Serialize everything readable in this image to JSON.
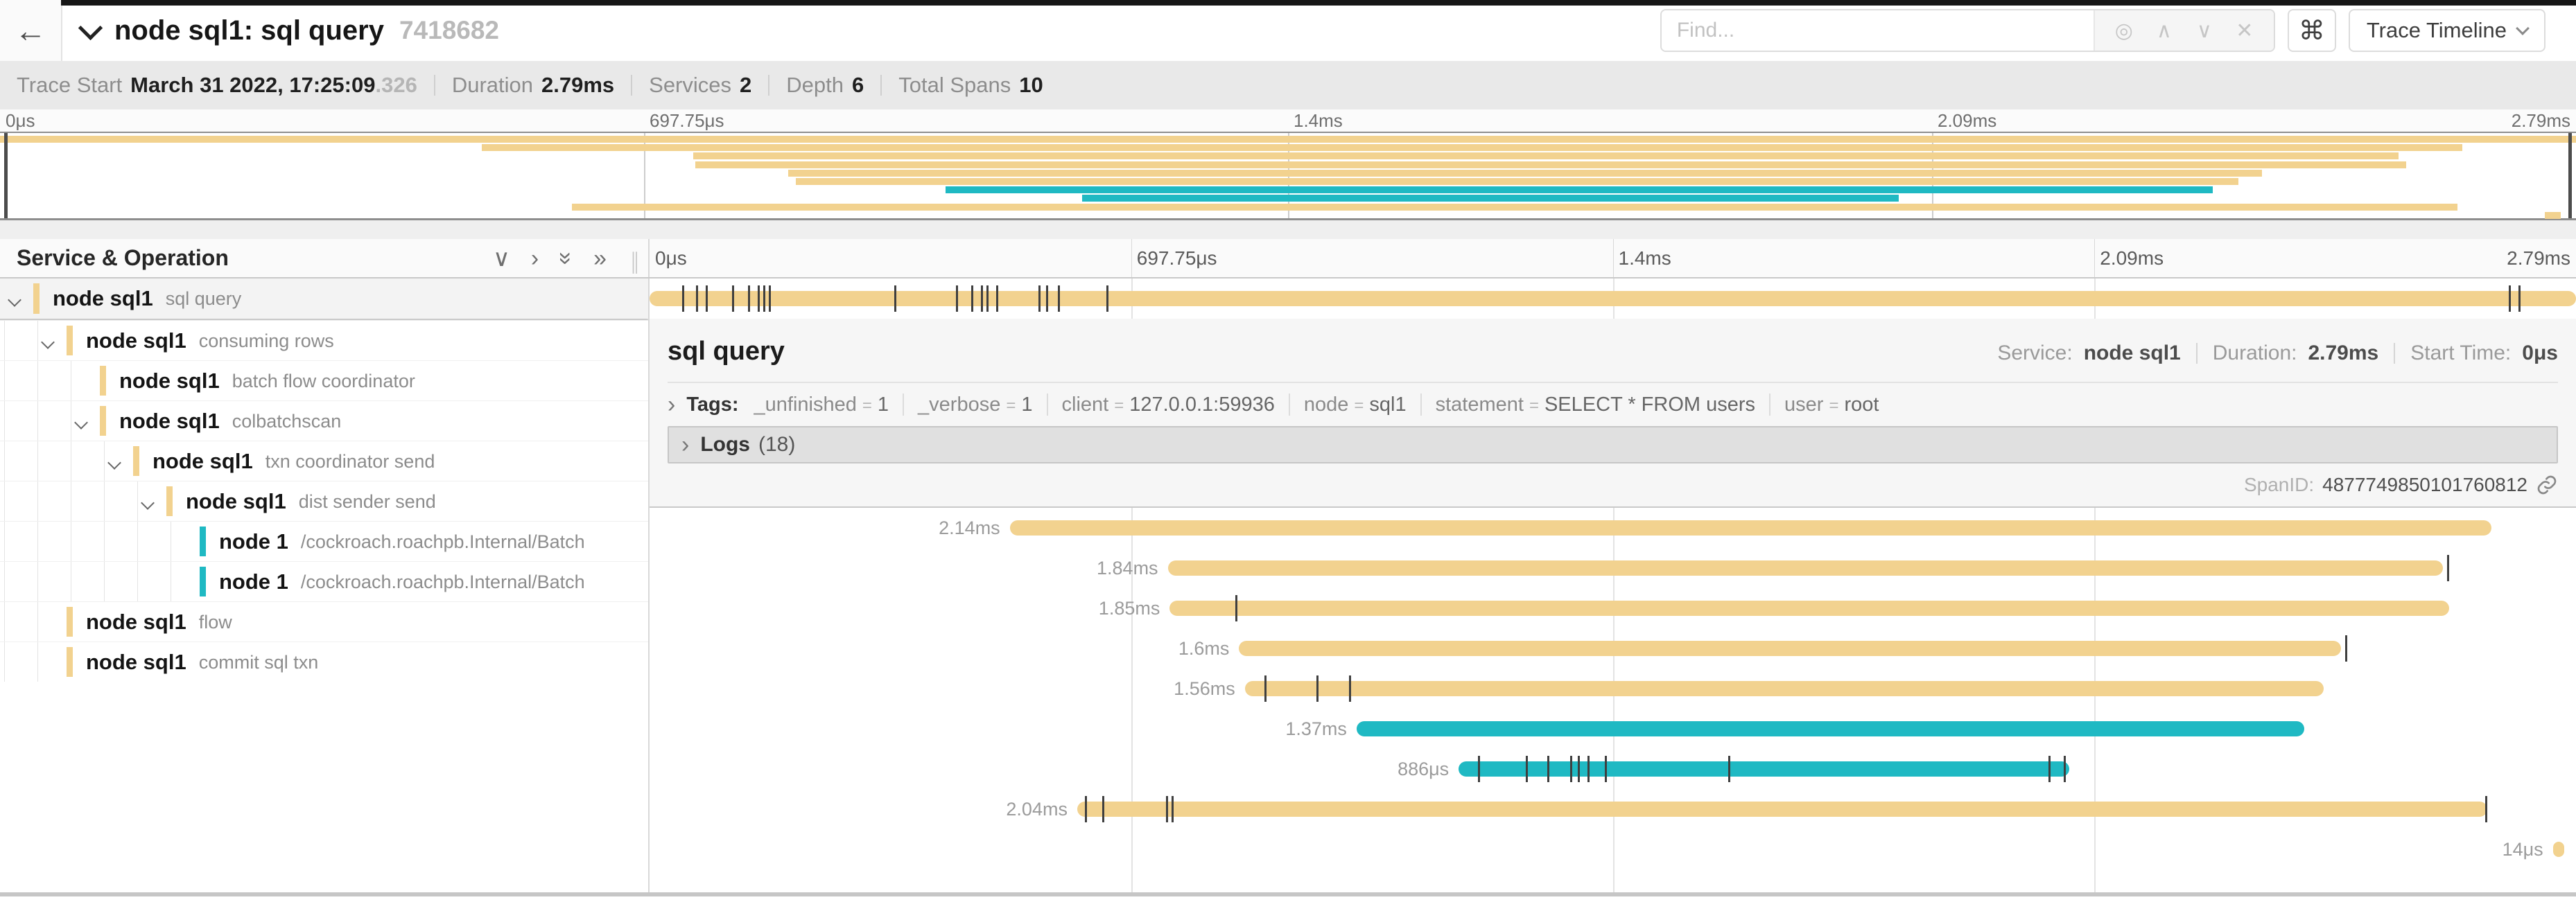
{
  "header": {
    "back_icon": "←",
    "title": "node sql1: sql query",
    "trace_id": "7418682",
    "find_placeholder": "Find...",
    "cmd_symbol": "⌘",
    "trace_timeline_label": "Trace Timeline"
  },
  "trace_info": {
    "items": [
      {
        "label": "Trace Start",
        "value": "March 31 2022, 17:25:09",
        "suffix": ".326"
      },
      {
        "label": "Duration",
        "value": "2.79ms"
      },
      {
        "label": "Services",
        "value": "2"
      },
      {
        "label": "Depth",
        "value": "6"
      },
      {
        "label": "Total Spans",
        "value": "10"
      }
    ]
  },
  "ruler": {
    "ticks": [
      {
        "label": "0μs",
        "pct": 0
      },
      {
        "label": "697.75μs",
        "pct": 25
      },
      {
        "label": "1.4ms",
        "pct": 50
      },
      {
        "label": "2.09ms",
        "pct": 75
      },
      {
        "label": "2.79ms",
        "pct": 100
      }
    ]
  },
  "table": {
    "header_label": "Service & Operation"
  },
  "colors": {
    "tan": "#f2d28f",
    "teal": "#1fb9c3",
    "cream": "#fdf5e2"
  },
  "spans": [
    {
      "service": "node sql1",
      "operation": "sql query",
      "depth": 0,
      "color": "tan",
      "expandable": true,
      "selected": true,
      "start_pct": 0,
      "width_pct": 100,
      "duration_label": null,
      "ticks": [
        1.7,
        2.4,
        2.9,
        4.3,
        5.1,
        5.6,
        5.9,
        6.2,
        12.7,
        15.9,
        16.7,
        17.2,
        17.5,
        18.0,
        20.2,
        20.6,
        21.2,
        23.7,
        96.5,
        97.0
      ]
    },
    {
      "service": "node sql1",
      "operation": "consuming rows",
      "depth": 1,
      "color": "tan",
      "expandable": true,
      "selected": false,
      "start_pct": 18.7,
      "width_pct": 76.9,
      "duration_label": "2.14ms",
      "ticks": []
    },
    {
      "service": "node sql1",
      "operation": "batch flow coordinator",
      "depth": 2,
      "color": "tan",
      "expandable": false,
      "selected": false,
      "start_pct": 26.9,
      "width_pct": 66.2,
      "duration_label": "1.84ms",
      "ticks": [
        93.3
      ]
    },
    {
      "service": "node sql1",
      "operation": "colbatchscan",
      "depth": 2,
      "color": "tan",
      "expandable": true,
      "selected": false,
      "start_pct": 27.0,
      "width_pct": 66.4,
      "duration_label": "1.85ms",
      "ticks": [
        30.4
      ]
    },
    {
      "service": "node sql1",
      "operation": "txn coordinator send",
      "depth": 3,
      "color": "tan",
      "expandable": true,
      "selected": false,
      "start_pct": 30.6,
      "width_pct": 57.2,
      "duration_label": "1.6ms",
      "ticks": [
        88.0
      ]
    },
    {
      "service": "node sql1",
      "operation": "dist sender send",
      "depth": 4,
      "color": "tan",
      "expandable": true,
      "selected": false,
      "start_pct": 30.9,
      "width_pct": 56.0,
      "duration_label": "1.56ms",
      "ticks": [
        31.9,
        34.6,
        36.3
      ]
    },
    {
      "service": "node 1",
      "operation": "/cockroach.roachpb.Internal/Batch",
      "depth": 5,
      "color": "teal",
      "expandable": false,
      "selected": false,
      "start_pct": 36.7,
      "width_pct": 49.2,
      "duration_label": "1.37ms",
      "ticks": []
    },
    {
      "service": "node 1",
      "operation": "/cockroach.roachpb.Internal/Batch",
      "depth": 5,
      "color": "teal",
      "expandable": false,
      "selected": false,
      "start_pct": 42.0,
      "width_pct": 31.7,
      "duration_label": "886μs",
      "ticks": [
        43.0,
        45.5,
        46.6,
        47.8,
        48.2,
        48.7,
        49.6,
        56.0,
        72.6,
        73.4
      ]
    },
    {
      "service": "node sql1",
      "operation": "flow",
      "depth": 1,
      "color": "tan",
      "expandable": false,
      "selected": false,
      "start_pct": 22.2,
      "width_pct": 73.2,
      "duration_label": "2.04ms",
      "ticks": [
        22.6,
        23.5,
        26.8,
        27.1,
        95.3
      ]
    },
    {
      "service": "node sql1",
      "operation": "commit sql txn",
      "depth": 1,
      "color": "tan",
      "expandable": false,
      "selected": false,
      "start_pct": 98.8,
      "width_pct": 0.6,
      "duration_label": "14μs",
      "ticks": []
    }
  ],
  "detail": {
    "title": "sql query",
    "service_label": "Service:",
    "service_value": "node sql1",
    "duration_label": "Duration:",
    "duration_value": "2.79ms",
    "start_label": "Start Time:",
    "start_value": "0μs",
    "tags_label": "Tags:",
    "tags": [
      {
        "key": "_unfinished",
        "value": "1"
      },
      {
        "key": "_verbose",
        "value": "1"
      },
      {
        "key": "client",
        "value": "127.0.0.1:59936"
      },
      {
        "key": "node",
        "value": "sql1"
      },
      {
        "key": "statement",
        "value": "SELECT * FROM users"
      },
      {
        "key": "user",
        "value": "root"
      }
    ],
    "logs_label": "Logs",
    "logs_count": "(18)",
    "span_id_label": "SpanID:",
    "span_id": "4877749850101760812"
  }
}
